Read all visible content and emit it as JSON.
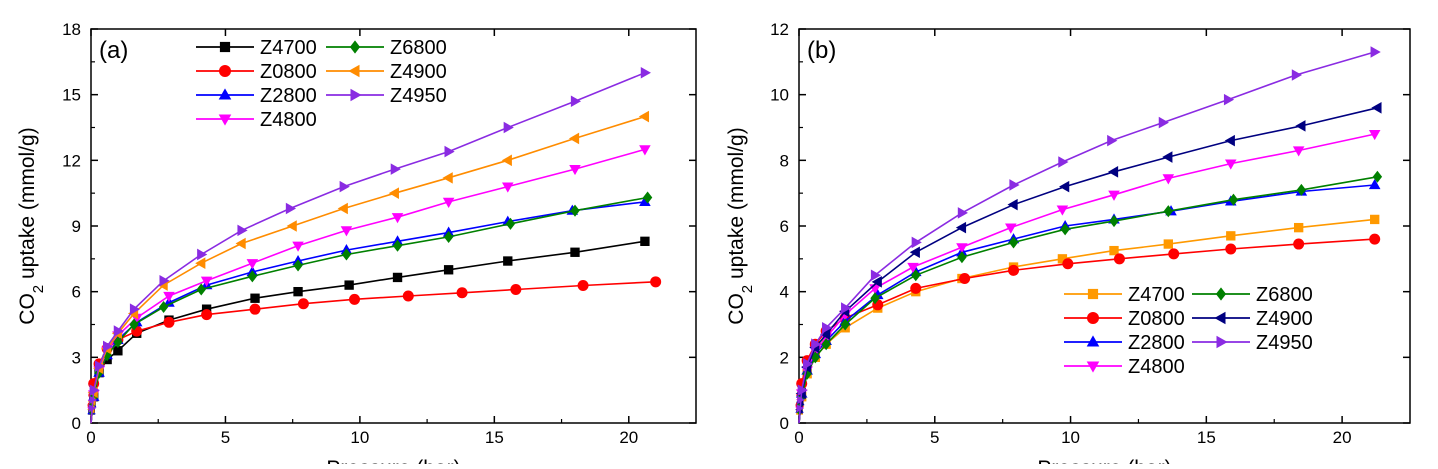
{
  "chart_data": [
    {
      "type": "line",
      "panel_label": "(a)",
      "xlabel": "Pressure (bar)",
      "ylabel": "CO2 uptake (mmol/g)",
      "ylabel_parts": {
        "main": "CO",
        "sub": "2",
        "rest": " uptake (mmol/g)"
      },
      "xlim": [
        0,
        22.5
      ],
      "ylim": [
        0,
        18
      ],
      "xticks": [
        0,
        5,
        10,
        15,
        20
      ],
      "yticks": [
        0,
        3,
        6,
        9,
        12,
        15,
        18
      ],
      "legend": {
        "position": "top-left",
        "columns": 2,
        "order": [
          "Z4700",
          "Z0800",
          "Z2800",
          "Z4800",
          "Z6800",
          "Z4900",
          "Z4950"
        ]
      },
      "series": [
        {
          "name": "Z4700",
          "color": "#000000",
          "marker": "square",
          "x": [
            0.1,
            0.3,
            0.6,
            1.0,
            1.7,
            2.9,
            4.3,
            6.1,
            7.7,
            9.6,
            11.4,
            13.3,
            15.5,
            18.0,
            20.6
          ],
          "y": [
            1.2,
            2.3,
            2.9,
            3.3,
            4.1,
            4.7,
            5.2,
            5.7,
            6.0,
            6.3,
            6.65,
            7.0,
            7.4,
            7.8,
            8.3
          ]
        },
        {
          "name": "Z0800",
          "color": "#ff0000",
          "marker": "circle",
          "x": [
            0.1,
            0.3,
            0.6,
            1.0,
            1.7,
            2.9,
            4.3,
            6.1,
            7.9,
            9.8,
            11.8,
            13.8,
            15.8,
            18.3,
            21.0
          ],
          "y": [
            1.8,
            2.7,
            3.4,
            3.8,
            4.2,
            4.6,
            4.95,
            5.2,
            5.45,
            5.65,
            5.8,
            5.95,
            6.1,
            6.28,
            6.45
          ]
        },
        {
          "name": "Z2800",
          "color": "#0000ff",
          "marker": "triangle-up",
          "x": [
            0.1,
            0.3,
            0.6,
            1.0,
            1.7,
            2.9,
            4.3,
            6.0,
            7.7,
            9.5,
            11.4,
            13.3,
            15.5,
            17.9,
            20.6
          ],
          "y": [
            1.2,
            2.3,
            3.1,
            3.8,
            4.6,
            5.5,
            6.3,
            6.9,
            7.4,
            7.9,
            8.3,
            8.7,
            9.2,
            9.7,
            10.1
          ]
        },
        {
          "name": "Z4800",
          "color": "#ff00ff",
          "marker": "triangle-down",
          "x": [
            0.1,
            0.3,
            0.6,
            1.0,
            1.7,
            2.9,
            4.3,
            6.0,
            7.7,
            9.5,
            11.4,
            13.3,
            15.5,
            18.0,
            20.6
          ],
          "y": [
            1.3,
            2.4,
            3.3,
            4.0,
            4.8,
            5.8,
            6.5,
            7.3,
            8.1,
            8.8,
            9.4,
            10.1,
            10.8,
            11.6,
            12.5
          ]
        },
        {
          "name": "Z6800",
          "color": "#008000",
          "marker": "diamond",
          "x": [
            0.1,
            0.3,
            0.6,
            1.0,
            1.6,
            2.7,
            4.1,
            6.0,
            7.7,
            9.5,
            11.4,
            13.3,
            15.6,
            18.0,
            20.7
          ],
          "y": [
            1.2,
            2.3,
            3.1,
            3.7,
            4.5,
            5.3,
            6.1,
            6.7,
            7.2,
            7.7,
            8.1,
            8.5,
            9.1,
            9.7,
            10.3
          ]
        },
        {
          "name": "Z4900",
          "color": "#ff8c00",
          "marker": "triangle-left",
          "x": [
            0.1,
            0.3,
            0.6,
            1.0,
            1.6,
            2.7,
            4.1,
            5.6,
            7.5,
            9.4,
            11.3,
            13.3,
            15.5,
            18.0,
            20.6
          ],
          "y": [
            1.4,
            2.5,
            3.4,
            4.1,
            5.0,
            6.3,
            7.3,
            8.2,
            9.0,
            9.8,
            10.5,
            11.2,
            12.0,
            13.0,
            14.0
          ]
        },
        {
          "name": "Z4950",
          "color": "#8a2be2",
          "marker": "triangle-right",
          "x": [
            0.1,
            0.3,
            0.6,
            1.0,
            1.6,
            2.7,
            4.1,
            5.6,
            7.4,
            9.4,
            11.3,
            13.3,
            15.5,
            18.0,
            20.6
          ],
          "y": [
            1.5,
            2.6,
            3.5,
            4.2,
            5.2,
            6.5,
            7.7,
            8.8,
            9.8,
            10.8,
            11.6,
            12.4,
            13.5,
            14.7,
            16.0
          ]
        }
      ]
    },
    {
      "type": "line",
      "panel_label": "(b)",
      "xlabel": "Pressure (bar)",
      "ylabel": "CO2 uptake (mmol/g)",
      "ylabel_parts": {
        "main": "CO",
        "sub": "2",
        "rest": " uptake (mmol/g)"
      },
      "xlim": [
        0,
        22.5
      ],
      "ylim": [
        0,
        12
      ],
      "xticks": [
        0,
        5,
        10,
        15,
        20
      ],
      "yticks": [
        0,
        2,
        4,
        6,
        8,
        10,
        12
      ],
      "legend": {
        "position": "bottom-right",
        "columns": 2,
        "order": [
          "Z4700",
          "Z0800",
          "Z2800",
          "Z4800",
          "Z6800",
          "Z4900",
          "Z4950"
        ]
      },
      "series": [
        {
          "name": "Z4700",
          "color": "#ff9900",
          "marker": "square",
          "x": [
            0.1,
            0.3,
            0.6,
            1.0,
            1.7,
            2.9,
            4.3,
            6.0,
            7.9,
            9.7,
            11.6,
            13.6,
            15.9,
            18.4,
            21.2
          ],
          "y": [
            0.8,
            1.5,
            2.0,
            2.4,
            2.9,
            3.5,
            4.0,
            4.4,
            4.75,
            5.0,
            5.25,
            5.45,
            5.7,
            5.95,
            6.2
          ]
        },
        {
          "name": "Z0800",
          "color": "#ff0000",
          "marker": "circle",
          "x": [
            0.1,
            0.3,
            0.6,
            1.0,
            1.7,
            2.9,
            4.3,
            6.1,
            7.9,
            9.9,
            11.8,
            13.8,
            15.9,
            18.4,
            21.2
          ],
          "y": [
            1.2,
            1.9,
            2.4,
            2.8,
            3.2,
            3.6,
            4.1,
            4.4,
            4.65,
            4.85,
            5.0,
            5.15,
            5.3,
            5.45,
            5.6
          ]
        },
        {
          "name": "Z2800",
          "color": "#0000ff",
          "marker": "triangle-up",
          "x": [
            0.1,
            0.3,
            0.6,
            1.0,
            1.7,
            2.9,
            4.3,
            6.0,
            7.9,
            9.8,
            11.6,
            13.7,
            15.9,
            18.5,
            21.2
          ],
          "y": [
            0.9,
            1.6,
            2.1,
            2.5,
            3.1,
            3.9,
            4.6,
            5.2,
            5.6,
            6.0,
            6.2,
            6.45,
            6.75,
            7.05,
            7.25
          ]
        },
        {
          "name": "Z4800",
          "color": "#ff00ff",
          "marker": "triangle-down",
          "x": [
            0.1,
            0.3,
            0.6,
            1.0,
            1.7,
            2.8,
            4.2,
            6.0,
            7.8,
            9.7,
            11.6,
            13.6,
            15.9,
            18.4,
            21.2
          ],
          "y": [
            0.9,
            1.6,
            2.2,
            2.6,
            3.3,
            4.1,
            4.75,
            5.35,
            5.95,
            6.5,
            6.95,
            7.45,
            7.9,
            8.3,
            8.8
          ]
        },
        {
          "name": "Z6800",
          "color": "#008000",
          "marker": "diamond",
          "x": [
            0.1,
            0.3,
            0.6,
            1.0,
            1.7,
            2.8,
            4.3,
            6.0,
            7.9,
            9.8,
            11.6,
            13.6,
            16.0,
            18.5,
            21.3
          ],
          "y": [
            0.8,
            1.5,
            2.0,
            2.4,
            3.0,
            3.8,
            4.5,
            5.05,
            5.5,
            5.9,
            6.15,
            6.45,
            6.8,
            7.1,
            7.5
          ]
        },
        {
          "name": "Z4900",
          "color": "#000080",
          "marker": "triangle-left",
          "x": [
            0.1,
            0.3,
            0.6,
            1.0,
            1.7,
            2.9,
            4.3,
            6.0,
            7.9,
            9.8,
            11.6,
            13.6,
            15.9,
            18.5,
            21.3
          ],
          "y": [
            0.9,
            1.7,
            2.3,
            2.7,
            3.4,
            4.3,
            5.2,
            5.95,
            6.65,
            7.2,
            7.65,
            8.1,
            8.6,
            9.05,
            9.6
          ]
        },
        {
          "name": "Z4950",
          "color": "#8a2be2",
          "marker": "triangle-right",
          "x": [
            0.1,
            0.3,
            0.6,
            1.0,
            1.7,
            2.8,
            4.3,
            6.0,
            7.9,
            9.7,
            11.5,
            13.4,
            15.8,
            18.3,
            21.2
          ],
          "y": [
            1.0,
            1.8,
            2.4,
            2.9,
            3.5,
            4.5,
            5.5,
            6.4,
            7.25,
            7.95,
            8.6,
            9.15,
            9.85,
            10.6,
            11.3
          ]
        }
      ]
    }
  ]
}
